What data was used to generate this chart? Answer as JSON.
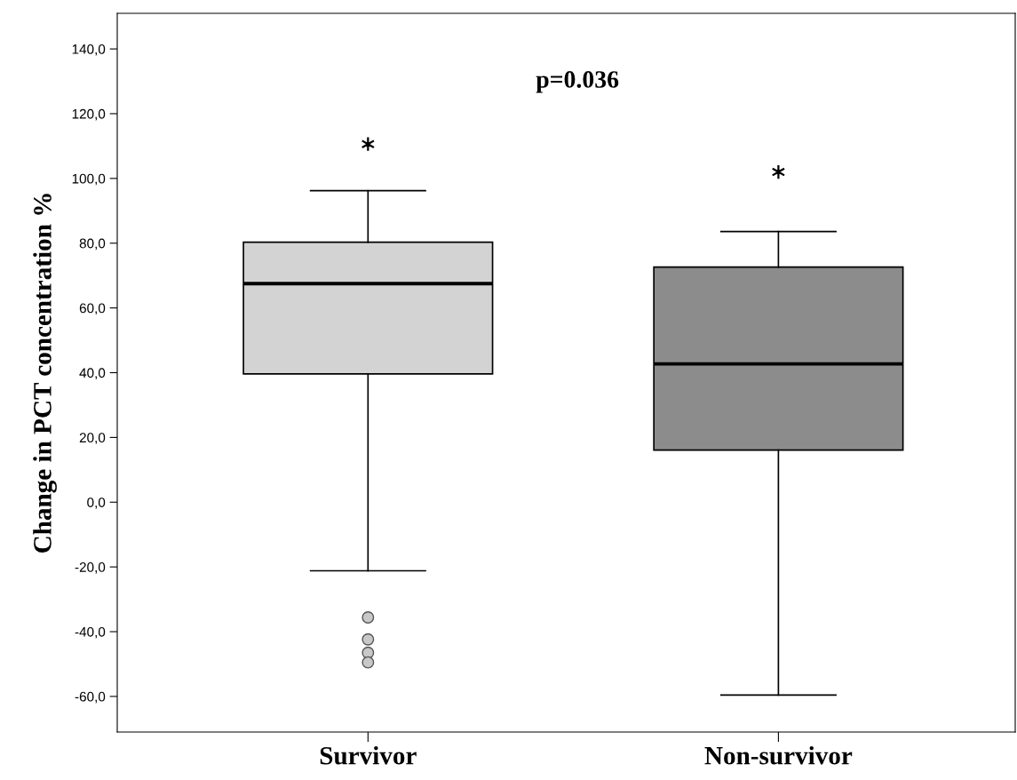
{
  "chart_data": {
    "type": "box",
    "ylabel": "Change in PCT concentration %",
    "categories": [
      "Survivor",
      "Non-survivor"
    ],
    "colors": [
      "#d3d3d3",
      "#8c8c8c"
    ],
    "boxes": [
      {
        "low": -21.2,
        "q1": 39.6,
        "median": 67.5,
        "q3": 80.3,
        "high": 96.2,
        "outliers": [
          110.6,
          -35.6,
          -42.4,
          -46.5,
          -49.5
        ]
      },
      {
        "low": -59.6,
        "q1": 16.1,
        "median": 42.7,
        "q3": 72.6,
        "high": 83.6,
        "outliers": [
          102
        ]
      }
    ],
    "ylim": [
      -71,
      151
    ],
    "yticks": [
      {
        "value": -60,
        "label": "-60,0"
      },
      {
        "value": -40,
        "label": "-40,0"
      },
      {
        "value": -20,
        "label": "-20,0"
      },
      {
        "value": 0,
        "label": "0,0"
      },
      {
        "value": 20,
        "label": "20,0"
      },
      {
        "value": 40,
        "label": "40,0"
      },
      {
        "value": 60,
        "label": "60,0"
      },
      {
        "value": 80,
        "label": "80,0"
      },
      {
        "value": 100,
        "label": "100,0"
      },
      {
        "value": 120,
        "label": "120,0"
      },
      {
        "value": 140,
        "label": "140,0"
      }
    ],
    "grid": false,
    "annotations": [
      "p=0.036"
    ]
  }
}
